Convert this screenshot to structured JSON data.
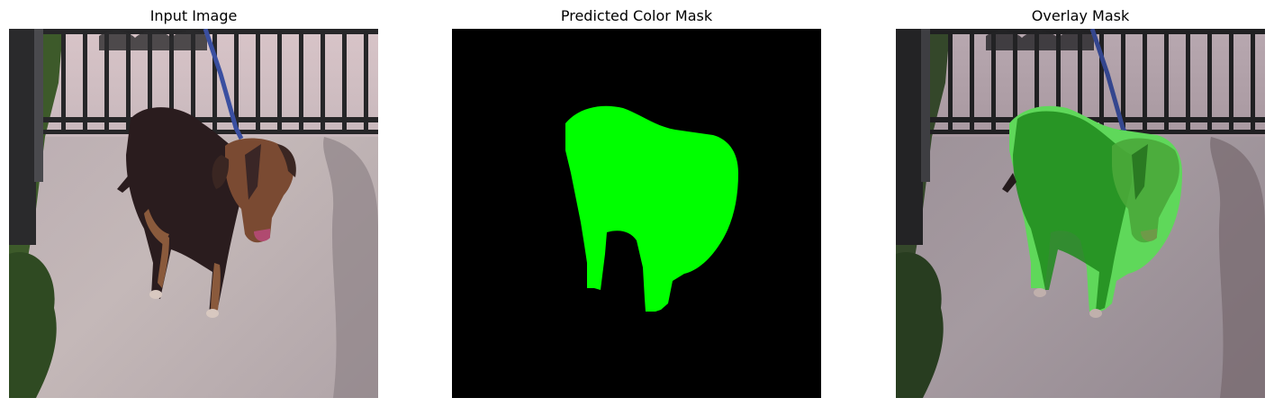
{
  "panels": [
    {
      "title": "Input Image"
    },
    {
      "title": "Predicted Color Mask"
    },
    {
      "title": "Overlay Mask"
    }
  ],
  "colors": {
    "background": "#ffffff",
    "mask_fill": "#00ff00",
    "mask_background": "#000000",
    "overlay_tint": "#2fbf2f"
  }
}
